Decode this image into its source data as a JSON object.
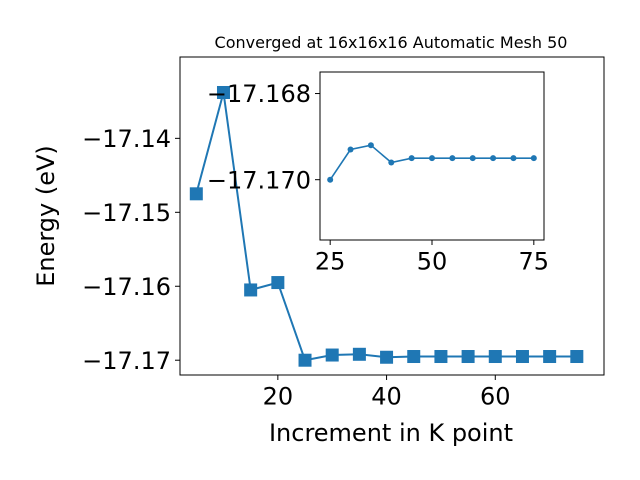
{
  "chart_data": [
    {
      "type": "line",
      "title": "Converged at 16x16x16 Automatic Mesh 50",
      "xlabel": "Increment in K point",
      "ylabel": "Energy (eV)",
      "xlim": [
        2,
        80
      ],
      "ylim": [
        -17.172,
        -17.129
      ],
      "xticks": [
        20,
        40,
        60
      ],
      "yticks": [
        -17.14,
        -17.15,
        -17.16,
        -17.17
      ],
      "xtick_labels": [
        "20",
        "40",
        "60"
      ],
      "ytick_labels": [
        "−17.14",
        "−17.15",
        "−17.16",
        "−17.17"
      ],
      "marker": "square",
      "color": "#1f77b4",
      "grid": false,
      "series": [
        {
          "x": [
            5,
            10,
            15,
            20,
            25,
            30,
            35,
            40,
            45,
            50,
            55,
            60,
            65,
            70,
            75
          ],
          "y": [
            -17.1475,
            -17.1338,
            -17.1605,
            -17.1595,
            -17.17,
            -17.1693,
            -17.1692,
            -17.1696,
            -17.1695,
            -17.1695,
            -17.1695,
            -17.1695,
            -17.1695,
            -17.1695,
            -17.1695
          ]
        }
      ]
    },
    {
      "type": "line",
      "title": "",
      "xlabel": "",
      "ylabel": "",
      "xlim": [
        22.5,
        77.5
      ],
      "ylim": [
        -17.1714,
        -17.1675
      ],
      "xticks": [
        25,
        50,
        75
      ],
      "yticks": [
        -17.17,
        -17.168
      ],
      "xtick_labels": [
        "25",
        "50",
        "75"
      ],
      "ytick_labels": [
        "−17.170",
        "−17.168"
      ],
      "marker": "circle",
      "color": "#1f77b4",
      "grid": false,
      "series": [
        {
          "x": [
            25,
            30,
            35,
            40,
            45,
            50,
            55,
            60,
            65,
            70,
            75
          ],
          "y": [
            -17.17,
            -17.1693,
            -17.1692,
            -17.1696,
            -17.1695,
            -17.1695,
            -17.1695,
            -17.1695,
            -17.1695,
            -17.1695,
            -17.1695
          ]
        }
      ]
    }
  ]
}
